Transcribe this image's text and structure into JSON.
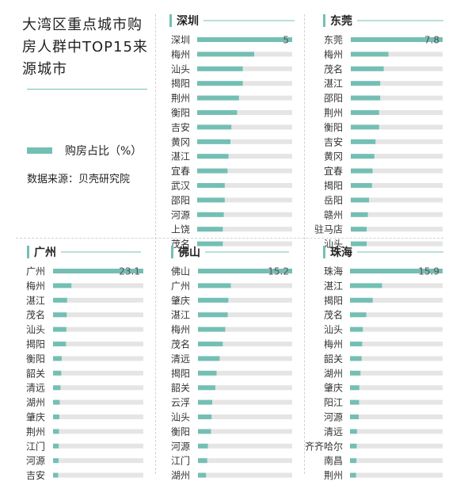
{
  "title": "大湾区重点城市购房人群中TOP15来源城市",
  "legend": {
    "label": "购房占比（%）",
    "color": "#74bfb4"
  },
  "source": "数据来源：贝壳研究院",
  "colors": {
    "bar": "#74bfb4",
    "track": "#e5e5e5",
    "accent": "#74bfb4"
  },
  "chart_data": [
    {
      "type": "bar",
      "title": "深圳",
      "xlim": [
        0,
        5
      ],
      "categories": [
        "深圳",
        "梅州",
        "汕头",
        "揭阳",
        "荆州",
        "衡阳",
        "吉安",
        "黄冈",
        "湛江",
        "宜春",
        "武汉",
        "邵阳",
        "河源",
        "上饶",
        "茂名"
      ],
      "values": [
        5,
        3.0,
        2.4,
        2.4,
        2.2,
        2.1,
        1.8,
        1.75,
        1.65,
        1.6,
        1.45,
        1.45,
        1.4,
        1.35,
        1.35
      ],
      "data_labels": [
        "5"
      ]
    },
    {
      "type": "bar",
      "title": "东莞",
      "xlim": [
        0,
        7.8
      ],
      "categories": [
        "东莞",
        "梅州",
        "茂名",
        "湛江",
        "邵阳",
        "荆州",
        "衡阳",
        "吉安",
        "黄冈",
        "宜春",
        "揭阳",
        "岳阳",
        "赣州",
        "驻马店",
        "汕头"
      ],
      "values": [
        7.8,
        3.2,
        2.8,
        2.5,
        2.5,
        2.4,
        2.4,
        2.1,
        2.0,
        1.85,
        1.8,
        1.55,
        1.45,
        1.35,
        1.35
      ],
      "data_labels": [
        "7.8"
      ]
    },
    {
      "type": "bar",
      "title": "广州",
      "xlim": [
        0,
        23.1
      ],
      "categories": [
        "广州",
        "梅州",
        "湛江",
        "茂名",
        "汕头",
        "揭阳",
        "衡阳",
        "韶关",
        "清远",
        "湖州",
        "肇庆",
        "荆州",
        "江门",
        "河源",
        "吉安"
      ],
      "values": [
        23.1,
        4.7,
        3.6,
        3.5,
        3.4,
        3.3,
        2.2,
        2.1,
        1.9,
        1.7,
        1.6,
        1.5,
        1.45,
        1.4,
        1.3
      ],
      "data_labels": [
        "23.1"
      ]
    },
    {
      "type": "bar",
      "title": "佛山",
      "xlim": [
        0,
        15.2
      ],
      "categories": [
        "佛山",
        "广州",
        "肇庆",
        "湛江",
        "梅州",
        "茂名",
        "清远",
        "揭阳",
        "韶关",
        "云浮",
        "汕头",
        "衡阳",
        "河源",
        "江门",
        "湖州"
      ],
      "values": [
        15.2,
        5.3,
        4.9,
        4.8,
        4.4,
        4.0,
        3.5,
        3.0,
        2.8,
        2.3,
        2.2,
        2.1,
        1.6,
        1.5,
        1.3
      ],
      "data_labels": [
        "15.2"
      ]
    },
    {
      "type": "bar",
      "title": "珠海",
      "xlim": [
        0,
        15.9
      ],
      "categories": [
        "珠海",
        "湛江",
        "揭阳",
        "茂名",
        "汕头",
        "梅州",
        "韶关",
        "湖州",
        "肇庆",
        "阳江",
        "河源",
        "清远",
        "齐齐哈尔",
        "南昌",
        "荆州"
      ],
      "values": [
        15.9,
        5.5,
        3.9,
        2.8,
        2.2,
        2.1,
        2.0,
        1.8,
        1.6,
        1.55,
        1.5,
        1.2,
        1.15,
        1.1,
        1.05
      ],
      "data_labels": [
        "15.9"
      ]
    }
  ]
}
